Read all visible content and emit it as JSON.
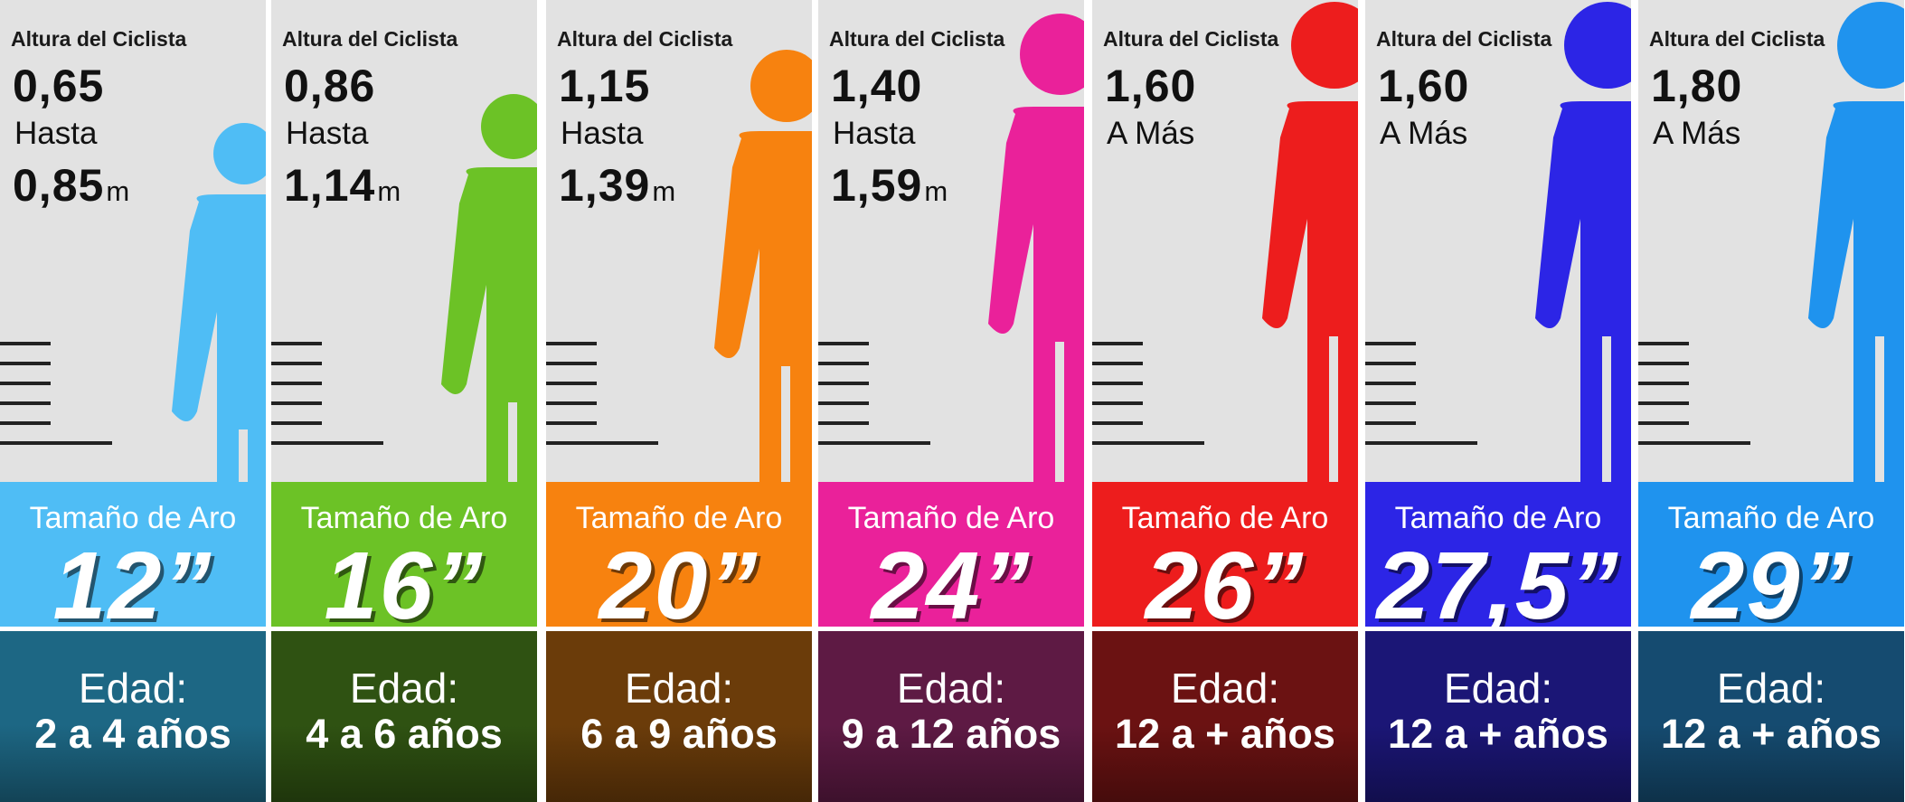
{
  "columns": [
    {
      "title": "Altura del Ciclista",
      "from": "0,65",
      "mid": "Hasta",
      "to": "0,85",
      "unit": "m",
      "aro_label": "Tamaño de Aro",
      "aro": "12”",
      "edad_label": "Edad:",
      "edad": "2 a 4 años",
      "color": "#4fbdf5",
      "dark": "#1d6784",
      "figure": "short"
    },
    {
      "title": "Altura del Ciclista",
      "from": "0,86",
      "mid": "Hasta",
      "to": "1,14",
      "unit": "m",
      "aro_label": "Tamaño de Aro",
      "aro": "16”",
      "edad_label": "Edad:",
      "edad": "4 a 6 años",
      "color": "#6cc226",
      "dark": "#2f5212",
      "figure": "medium"
    },
    {
      "title": "Altura del Ciclista",
      "from": "1,15",
      "mid": "Hasta",
      "to": "1,39",
      "unit": "m",
      "aro_label": "Tamaño de Aro",
      "aro": "20”",
      "edad_label": "Edad:",
      "edad": "6 a 9 años",
      "color": "#f7820f",
      "dark": "#6b3c0a",
      "figure": "tall"
    },
    {
      "title": "Altura del Ciclista",
      "from": "1,40",
      "mid": "Hasta",
      "to": "1,59",
      "unit": "m",
      "aro_label": "Tamaño de Aro",
      "aro": "24”",
      "edad_label": "Edad:",
      "edad": "9 a 12 años",
      "color": "#ea219a",
      "dark": "#5e1a44",
      "figure": "taller"
    },
    {
      "title": "Altura del Ciclista",
      "from": "1,60",
      "mid": "A Más",
      "to": "",
      "unit": "",
      "aro_label": "Tamaño de Aro",
      "aro": "26”",
      "edad_label": "Edad:",
      "edad": "12 a + años",
      "color": "#ed1d1d",
      "dark": "#6b1212",
      "figure": "tallest"
    },
    {
      "title": "Altura del Ciclista",
      "from": "1,60",
      "mid": "A Más",
      "to": "",
      "unit": "",
      "aro_label": "Tamaño de Aro",
      "aro": "27,5”",
      "edad_label": "Edad:",
      "edad": "12 a + años",
      "color": "#2c25e6",
      "dark": "#1b1676",
      "figure": "tallest"
    },
    {
      "title": "Altura del Ciclista",
      "from": "1,80",
      "mid": "A Más",
      "to": "",
      "unit": "",
      "aro_label": "Tamaño de Aro",
      "aro": "29”",
      "edad_label": "Edad:",
      "edad": "12 a + años",
      "color": "#1f93ee",
      "dark": "#154b70",
      "figure": "tallest"
    }
  ]
}
